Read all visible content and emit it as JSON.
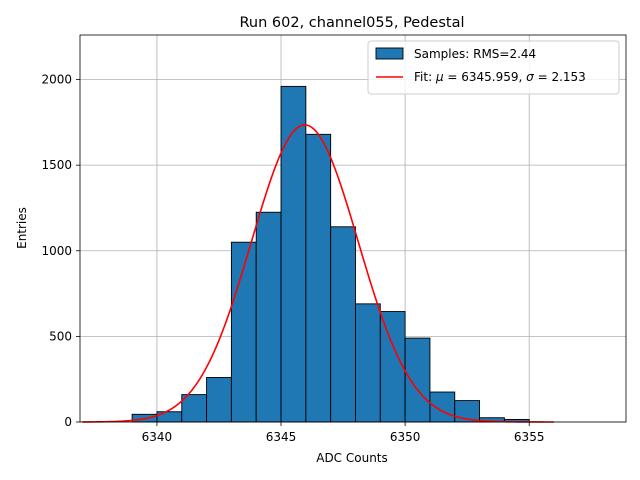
{
  "chart_data": {
    "type": "bar",
    "title": "Run 602, channel055, Pedestal",
    "xlabel": "ADC Counts",
    "ylabel": "Entries",
    "xlim": [
      6336.9,
      6358.9
    ],
    "ylim": [
      0,
      2260
    ],
    "xticks": [
      6340,
      6345,
      6350,
      6355
    ],
    "yticks": [
      0,
      500,
      1000,
      1500,
      2000
    ],
    "grid": true,
    "legend_position": "top-right",
    "histogram": {
      "name": "Samples: RMS=2.44",
      "color": "#1f77b4",
      "bin_edges": [
        6339,
        6340,
        6341,
        6342,
        6343,
        6344,
        6345,
        6346,
        6347,
        6348,
        6349,
        6350,
        6351,
        6352,
        6353,
        6354,
        6355
      ],
      "values": [
        45,
        60,
        160,
        260,
        1050,
        1225,
        1960,
        1680,
        1140,
        690,
        645,
        490,
        175,
        125,
        25,
        15
      ]
    },
    "fit": {
      "name": "Fit: μ = 6345.959, σ = 2.153",
      "legend_label": "Fit: ",
      "legend_mu_symbol": "μ",
      "legend_mu_text": " = 6345.959, ",
      "legend_sigma_symbol": "σ",
      "legend_sigma_text": " = 2.153",
      "color": "#ff0000",
      "mu": 6345.959,
      "sigma": 2.153,
      "amplitude": 1735,
      "x_range": [
        6337,
        6356
      ]
    }
  }
}
